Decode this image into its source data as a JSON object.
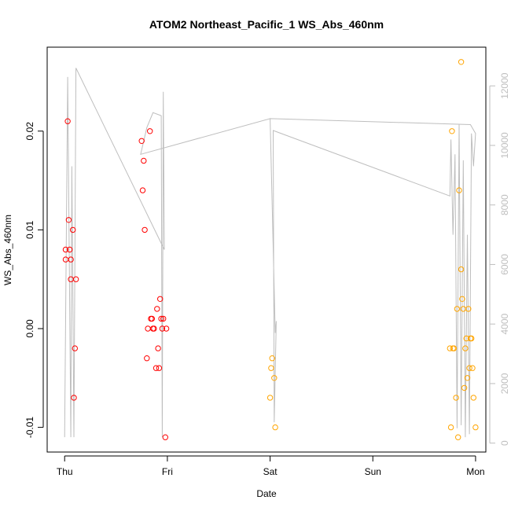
{
  "chart_data": {
    "type": "scatter",
    "title": "ATOM2 Northeast_Pacific_1 WS_Abs_460nm",
    "xlabel": "Date",
    "ylabel": "WS_Abs_460nm",
    "x_ticks": [
      "Thu",
      "Fri",
      "Sat",
      "Sun",
      "Mon"
    ],
    "xlim_days": [
      -0.17,
      4.1
    ],
    "ylim": [
      -0.0125,
      0.0285
    ],
    "y_ticks": [
      -0.01,
      0.0,
      0.01,
      0.02
    ],
    "y_tick_labels": [
      "-0.01",
      "0.00",
      "0.01",
      "0.02"
    ],
    "y2lim": [
      -300,
      13300
    ],
    "y2_ticks": [
      0,
      2000,
      4000,
      6000,
      8000,
      10000,
      12000
    ],
    "y2_tick_labels": [
      "0",
      "2000",
      "4000",
      "6000",
      "8000",
      "10000",
      "12000"
    ],
    "colors": {
      "series_red": "#ff0000",
      "series_orange": "#ffa500",
      "line": "#bebebe",
      "axis": "#000000"
    },
    "series": [
      {
        "color": "#ff0000",
        "points": [
          [
            0.01,
            0.008
          ],
          [
            0.01,
            0.007
          ],
          [
            0.03,
            0.021
          ],
          [
            0.04,
            0.011
          ],
          [
            0.05,
            0.008
          ],
          [
            0.06,
            0.007
          ],
          [
            0.06,
            0.005
          ],
          [
            0.08,
            0.01
          ],
          [
            0.09,
            -0.007
          ],
          [
            0.1,
            -0.002
          ],
          [
            0.11,
            0.005
          ],
          [
            0.75,
            0.019
          ],
          [
            0.76,
            0.014
          ],
          [
            0.77,
            0.017
          ],
          [
            0.78,
            0.01
          ],
          [
            0.8,
            -0.003
          ],
          [
            0.81,
            0.0
          ],
          [
            0.83,
            0.02
          ],
          [
            0.84,
            0.001
          ],
          [
            0.85,
            0.001
          ],
          [
            0.86,
            0.0
          ],
          [
            0.87,
            0.0
          ],
          [
            0.89,
            -0.004
          ],
          [
            0.9,
            0.002
          ],
          [
            0.91,
            -0.002
          ],
          [
            0.92,
            -0.004
          ],
          [
            0.93,
            0.003
          ],
          [
            0.94,
            0.001
          ],
          [
            0.95,
            0.0
          ],
          [
            0.96,
            0.001
          ],
          [
            0.98,
            -0.011
          ],
          [
            0.99,
            0.0
          ]
        ]
      },
      {
        "color": "#ffa500",
        "points": [
          [
            2.0,
            -0.007
          ],
          [
            2.01,
            -0.004
          ],
          [
            2.02,
            -0.003
          ],
          [
            2.04,
            -0.005
          ],
          [
            2.05,
            -0.01
          ],
          [
            3.75,
            -0.002
          ],
          [
            3.76,
            -0.01
          ],
          [
            3.77,
            0.02
          ],
          [
            3.78,
            -0.002
          ],
          [
            3.79,
            -0.002
          ],
          [
            3.81,
            -0.007
          ],
          [
            3.82,
            0.002
          ],
          [
            3.83,
            -0.011
          ],
          [
            3.84,
            0.014
          ],
          [
            3.86,
            0.006
          ],
          [
            3.87,
            0.003
          ],
          [
            3.88,
            0.002
          ],
          [
            3.89,
            -0.006
          ],
          [
            3.9,
            -0.002
          ],
          [
            3.91,
            -0.001
          ],
          [
            3.92,
            -0.005
          ],
          [
            3.93,
            0.002
          ],
          [
            3.94,
            -0.004
          ],
          [
            3.95,
            -0.001
          ],
          [
            3.96,
            -0.001
          ],
          [
            3.97,
            -0.004
          ],
          [
            3.98,
            -0.007
          ],
          [
            4.0,
            -0.01
          ],
          [
            3.86,
            0.027
          ]
        ]
      }
    ],
    "line_series": {
      "axis": "right",
      "color": "#bebebe",
      "points": [
        [
          0.0,
          200
        ],
        [
          0.03,
          12300
        ],
        [
          0.06,
          200
        ],
        [
          0.07,
          9300
        ],
        [
          0.09,
          200
        ],
        [
          0.11,
          12600
        ],
        [
          0.97,
          6500
        ],
        [
          0.96,
          11800
        ],
        [
          0.95,
          200
        ],
        [
          0.94,
          11000
        ],
        [
          0.86,
          11100
        ],
        [
          0.8,
          10600
        ],
        [
          0.74,
          9700
        ],
        [
          2.0,
          10900
        ],
        [
          2.05,
          3700
        ],
        [
          2.06,
          4100
        ],
        [
          2.04,
          700
        ],
        [
          2.03,
          10500
        ],
        [
          3.75,
          8300
        ],
        [
          3.76,
          10200
        ],
        [
          3.78,
          7000
        ],
        [
          3.8,
          9700
        ],
        [
          3.82,
          500
        ],
        [
          3.84,
          10700
        ],
        [
          3.86,
          600
        ],
        [
          3.88,
          9500
        ],
        [
          3.9,
          200
        ],
        [
          3.92,
          7000
        ],
        [
          3.94,
          300
        ],
        [
          3.96,
          10400
        ],
        [
          3.98,
          9300
        ],
        [
          4.0,
          10400
        ],
        [
          3.95,
          10700
        ],
        [
          2.0,
          10900
        ]
      ]
    },
    "grid": false,
    "legend": "none"
  }
}
